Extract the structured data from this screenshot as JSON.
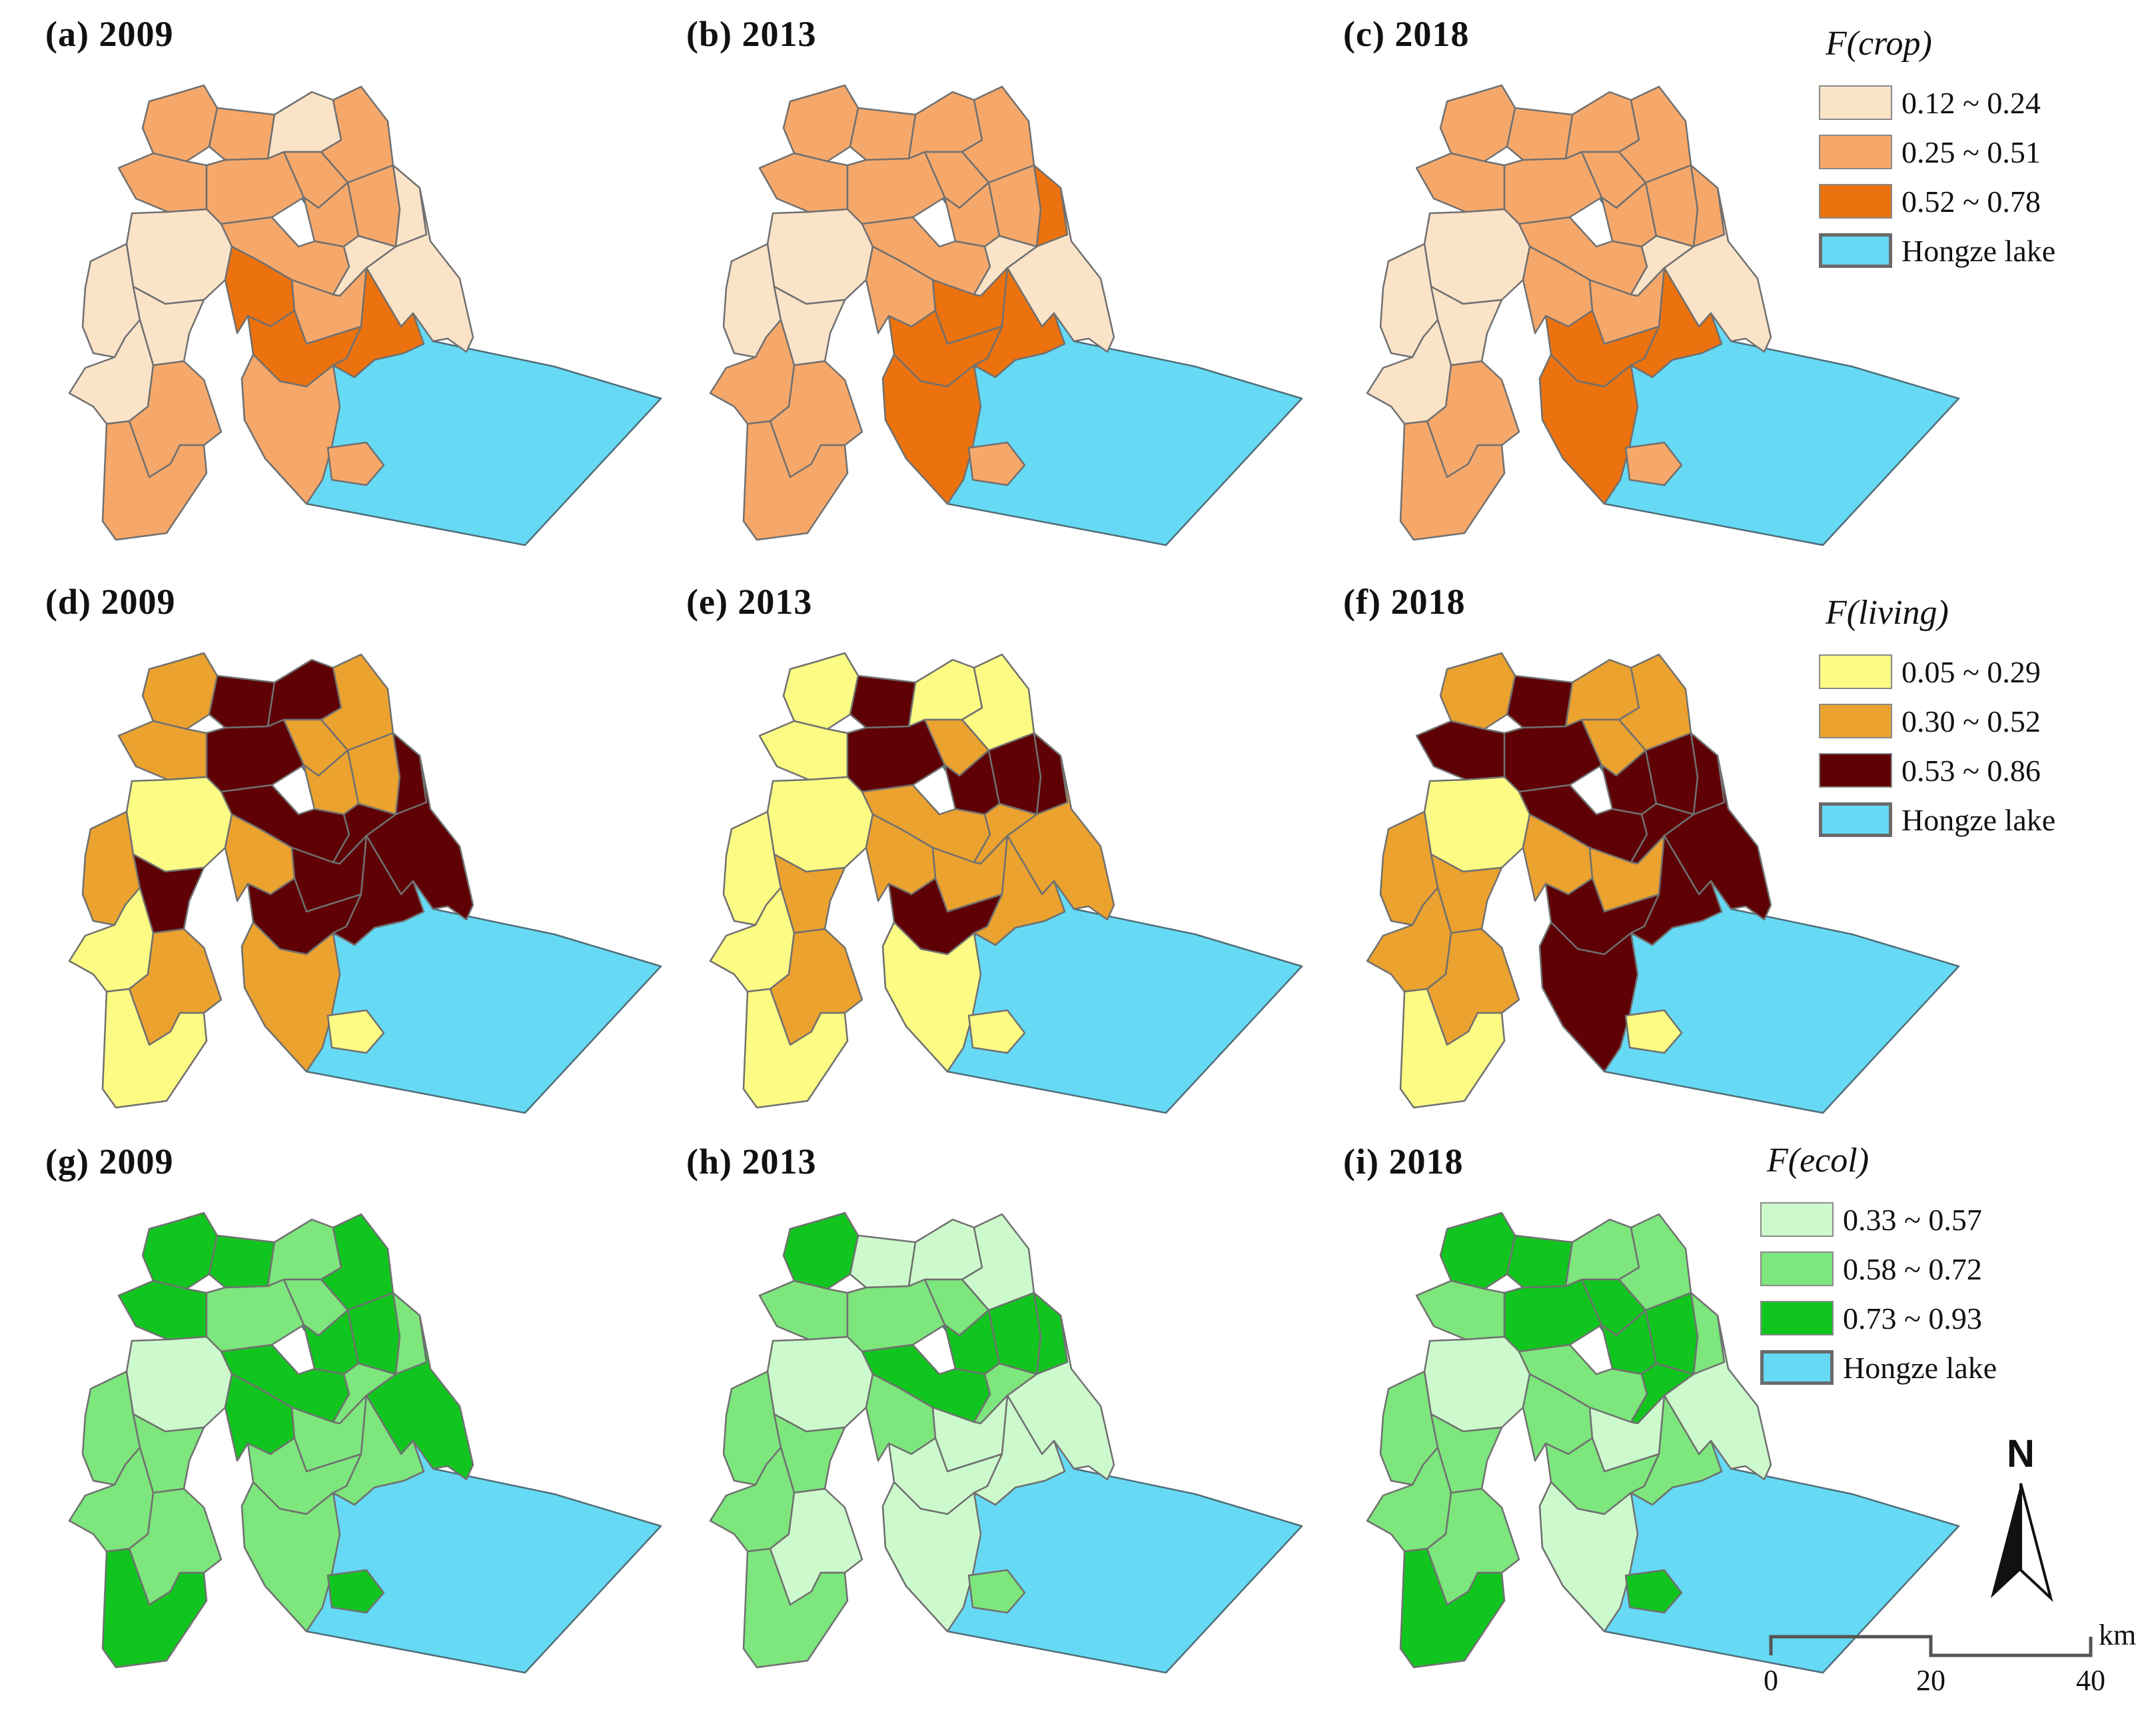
{
  "colors": {
    "lake": "#66d9f4",
    "boundary": "#707070"
  },
  "panels": [
    {
      "label": "(a) 2009",
      "row": 0,
      "col": 0
    },
    {
      "label": "(b) 2013",
      "row": 0,
      "col": 1
    },
    {
      "label": "(c) 2018",
      "row": 0,
      "col": 2
    },
    {
      "label": "(d) 2009",
      "row": 1,
      "col": 0
    },
    {
      "label": "(e) 2013",
      "row": 1,
      "col": 1
    },
    {
      "label": "(f) 2018",
      "row": 1,
      "col": 2
    },
    {
      "label": "(g) 2009",
      "row": 2,
      "col": 0
    },
    {
      "label": "(h) 2013",
      "row": 2,
      "col": 1
    },
    {
      "label": "(i) 2018",
      "row": 2,
      "col": 2
    }
  ],
  "legends": [
    {
      "title": "F(crop)",
      "classes": [
        {
          "label": "0.12 ~ 0.24",
          "color": "#fbe3c8"
        },
        {
          "label": "0.25 ~ 0.51",
          "color": "#f6a86a"
        },
        {
          "label": "0.52 ~ 0.78",
          "color": "#eb720e"
        }
      ],
      "lake_label": "Hongze lake"
    },
    {
      "title": "F(living)",
      "classes": [
        {
          "label": "0.05 ~ 0.29",
          "color": "#fcfc84"
        },
        {
          "label": "0.30 ~ 0.52",
          "color": "#eba22e"
        },
        {
          "label": "0.53 ~ 0.86",
          "color": "#5e0004"
        }
      ],
      "lake_label": "Hongze lake"
    },
    {
      "title": "F(ecol)",
      "classes": [
        {
          "label": "0.33 ~ 0.57",
          "color": "#ccfacc"
        },
        {
          "label": "0.58 ~ 0.72",
          "color": "#7de67c"
        },
        {
          "label": "0.73 ~ 0.93",
          "color": "#11c51f"
        }
      ],
      "lake_label": "Hongze lake"
    }
  ],
  "map_classes": [
    [
      1,
      1,
      0,
      1,
      1,
      1,
      0,
      1,
      1,
      1,
      0,
      0,
      1,
      0,
      2,
      1,
      2,
      2,
      1,
      0,
      0,
      0,
      1,
      1
    ],
    [
      1,
      1,
      1,
      1,
      1,
      1,
      0,
      1,
      1,
      1,
      2,
      0,
      1,
      0,
      1,
      2,
      2,
      2,
      2,
      0,
      0,
      1,
      1,
      1
    ],
    [
      1,
      1,
      1,
      1,
      1,
      1,
      0,
      1,
      1,
      1,
      1,
      0,
      1,
      0,
      1,
      1,
      2,
      2,
      2,
      0,
      0,
      0,
      1,
      1
    ],
    [
      1,
      2,
      2,
      1,
      1,
      2,
      0,
      1,
      1,
      1,
      2,
      2,
      2,
      2,
      1,
      2,
      2,
      2,
      1,
      1,
      2,
      0,
      1,
      0
    ],
    [
      0,
      2,
      0,
      0,
      0,
      2,
      0,
      1,
      2,
      2,
      2,
      1,
      1,
      1,
      1,
      1,
      2,
      1,
      0,
      0,
      1,
      0,
      1,
      0
    ],
    [
      1,
      2,
      1,
      1,
      2,
      2,
      0,
      1,
      2,
      2,
      2,
      2,
      2,
      2,
      1,
      1,
      2,
      2,
      2,
      1,
      1,
      1,
      1,
      0
    ],
    [
      2,
      2,
      1,
      2,
      2,
      1,
      0,
      1,
      2,
      2,
      1,
      2,
      2,
      1,
      2,
      1,
      1,
      1,
      1,
      1,
      1,
      1,
      1,
      2
    ],
    [
      2,
      0,
      0,
      0,
      1,
      1,
      0,
      1,
      2,
      2,
      2,
      0,
      2,
      1,
      1,
      0,
      0,
      0,
      0,
      1,
      1,
      1,
      0,
      1
    ],
    [
      2,
      2,
      1,
      1,
      1,
      2,
      0,
      2,
      2,
      2,
      1,
      0,
      1,
      2,
      1,
      0,
      1,
      1,
      0,
      1,
      1,
      1,
      1,
      2
    ]
  ],
  "north_arrow": {
    "label": "N"
  },
  "scale_bar": {
    "ticks": [
      "0",
      "20",
      "40"
    ],
    "unit": "km"
  }
}
